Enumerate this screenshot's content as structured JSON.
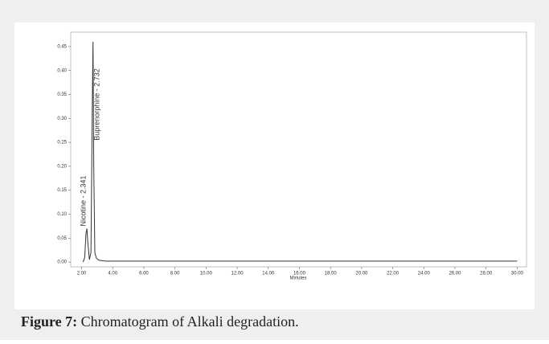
{
  "chart_data": {
    "type": "line",
    "x_label": "Minutes",
    "x": [
      2.1,
      2.2,
      2.28,
      2.341,
      2.4,
      2.5,
      2.6,
      2.68,
      2.732,
      2.78,
      2.85,
      2.95,
      3.1,
      3.5,
      5,
      10,
      20,
      30
    ],
    "series": [
      {
        "color": "#333333",
        "values": [
          0.0,
          0.01,
          0.06,
          0.07,
          0.04,
          0.005,
          0.02,
          0.3,
          0.46,
          0.2,
          0.02,
          0.008,
          0.004,
          0.002,
          0.002,
          0.002,
          0.002,
          0.002
        ]
      }
    ],
    "annotations": [
      "Nicotine - 2.341",
      "Buprenorphine - 2.732"
    ],
    "xlim": [
      1.3,
      30.6
    ],
    "ylim": [
      -0.01,
      0.48
    ],
    "xticks": [
      {
        "value": 2,
        "label": "2.00"
      },
      {
        "value": 4,
        "label": "4.00"
      },
      {
        "value": 6,
        "label": "6.00"
      },
      {
        "value": 8,
        "label": "8.00"
      },
      {
        "value": 10,
        "label": "10.00"
      },
      {
        "value": 12,
        "label": "12.00"
      },
      {
        "value": 14,
        "label": "14.00"
      },
      {
        "value": 16,
        "label": "16.00"
      },
      {
        "value": 18,
        "label": "18.00"
      },
      {
        "value": 20,
        "label": "20.00"
      },
      {
        "value": 22,
        "label": "22.00"
      },
      {
        "value": 24,
        "label": "24.00"
      },
      {
        "value": 26,
        "label": "26.00"
      },
      {
        "value": 28,
        "label": "28.00"
      },
      {
        "value": 30,
        "label": "30.00"
      }
    ],
    "yticks": [
      {
        "value": 0,
        "label": "0.00"
      },
      0.05,
      {
        "value": 0.1,
        "label": "0.10"
      },
      0.15,
      {
        "value": 0.2,
        "label": "0.20"
      },
      0.25,
      {
        "value": 0.3,
        "label": "0.30"
      },
      0.35,
      {
        "value": 0.4,
        "label": "0.40"
      },
      0.45
    ]
  },
  "caption": {
    "label": "Figure 7:",
    "text": "Chromatogram of Alkali degradation."
  }
}
